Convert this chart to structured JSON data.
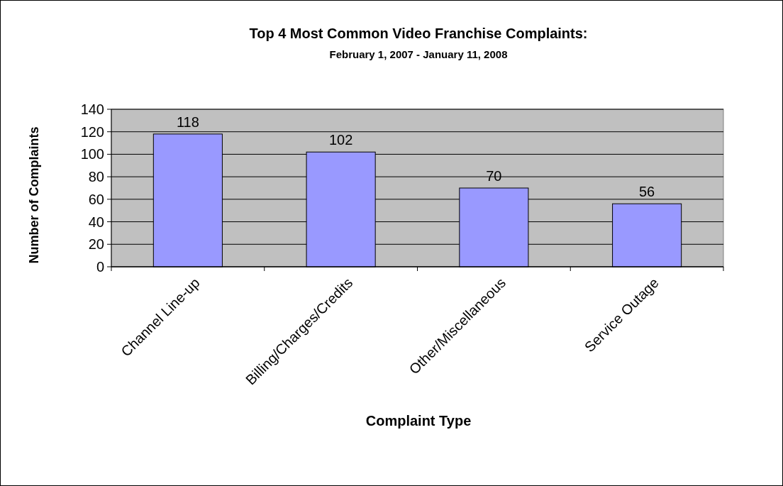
{
  "chart_data": {
    "type": "bar",
    "title": "Top 4 Most Common Video Franchise Complaints:",
    "subtitle": "February 1, 2007 - January 11, 2008",
    "xlabel": "Complaint Type",
    "ylabel": "Number of Complaints",
    "categories": [
      "Channel Line-up",
      "Billing/Charges/Credits",
      "Other/Miscellaneous",
      "Service Outage"
    ],
    "values": [
      118,
      102,
      70,
      56
    ],
    "color": "#9999ff",
    "ylim": [
      0,
      140
    ],
    "yticks": [
      0,
      20,
      40,
      60,
      80,
      100,
      120,
      140
    ],
    "grid": "y",
    "data_labels": true
  }
}
